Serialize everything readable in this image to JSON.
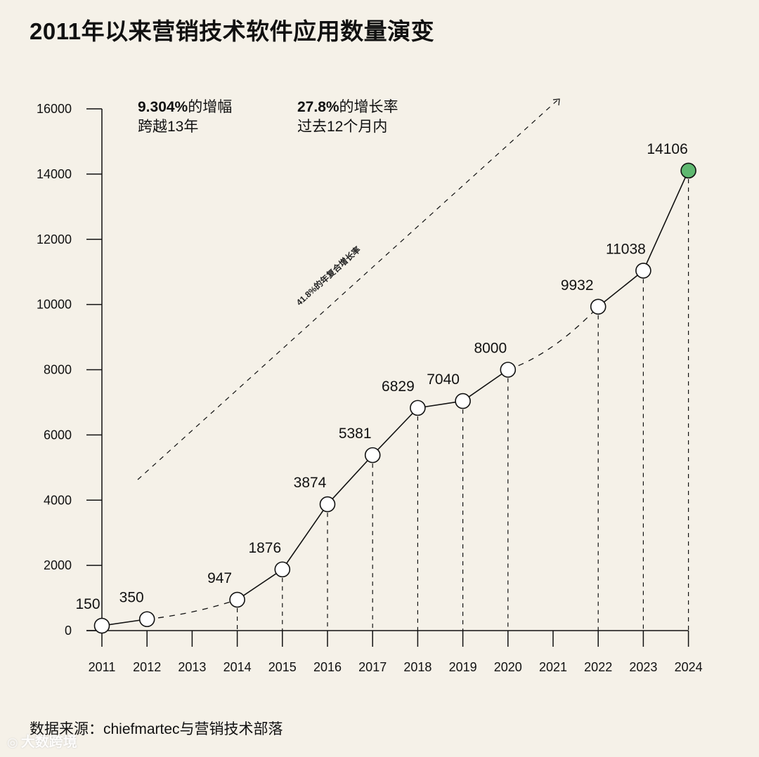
{
  "title": "2011年以来营销技术软件应用数量演变",
  "source": "数据来源：chiefmartec与营销技术部落",
  "watermark": "大数跨境",
  "colors": {
    "background": "#f5f1e8",
    "line": "#111111",
    "marker_fill": "#ffffff",
    "highlight_fill": "#5fb870"
  },
  "annotations": {
    "growth_13y": {
      "value": "9.304%",
      "suffix": "的增幅",
      "line2": "跨越13年"
    },
    "growth_12m": {
      "value": "27.8%",
      "suffix": "的增长率",
      "line2": "过去12个月内"
    },
    "trend_label": "41.8%的年复合增长率"
  },
  "chart_data": {
    "type": "line",
    "title": "2011年以来营销技术软件应用数量演变",
    "xlabel": "",
    "ylabel": "",
    "ylim": [
      0,
      16000
    ],
    "yticks": [
      0,
      2000,
      4000,
      6000,
      8000,
      10000,
      12000,
      14000,
      16000
    ],
    "categories": [
      "2011",
      "2012",
      "2013",
      "2014",
      "2015",
      "2016",
      "2017",
      "2018",
      "2019",
      "2020",
      "2021",
      "2022",
      "2023",
      "2024"
    ],
    "points": [
      {
        "year": "2011",
        "value": 150,
        "label": "150"
      },
      {
        "year": "2012",
        "value": 350,
        "label": "350"
      },
      {
        "year": "2014",
        "value": 947,
        "label": "947"
      },
      {
        "year": "2015",
        "value": 1876,
        "label": "1876"
      },
      {
        "year": "2016",
        "value": 3874,
        "label": "3874"
      },
      {
        "year": "2017",
        "value": 5381,
        "label": "5381"
      },
      {
        "year": "2018",
        "value": 6829,
        "label": "6829"
      },
      {
        "year": "2019",
        "value": 7040,
        "label": "7040"
      },
      {
        "year": "2020",
        "value": 8000,
        "label": "8000"
      },
      {
        "year": "2022",
        "value": 9932,
        "label": "9932"
      },
      {
        "year": "2023",
        "value": 11038,
        "label": "11038"
      },
      {
        "year": "2024",
        "value": 14106,
        "label": "14106",
        "highlight": true
      }
    ],
    "gaps_dashed": [
      [
        "2012",
        "2014"
      ],
      [
        "2020",
        "2022"
      ]
    ],
    "grid": false,
    "legend": "none"
  }
}
